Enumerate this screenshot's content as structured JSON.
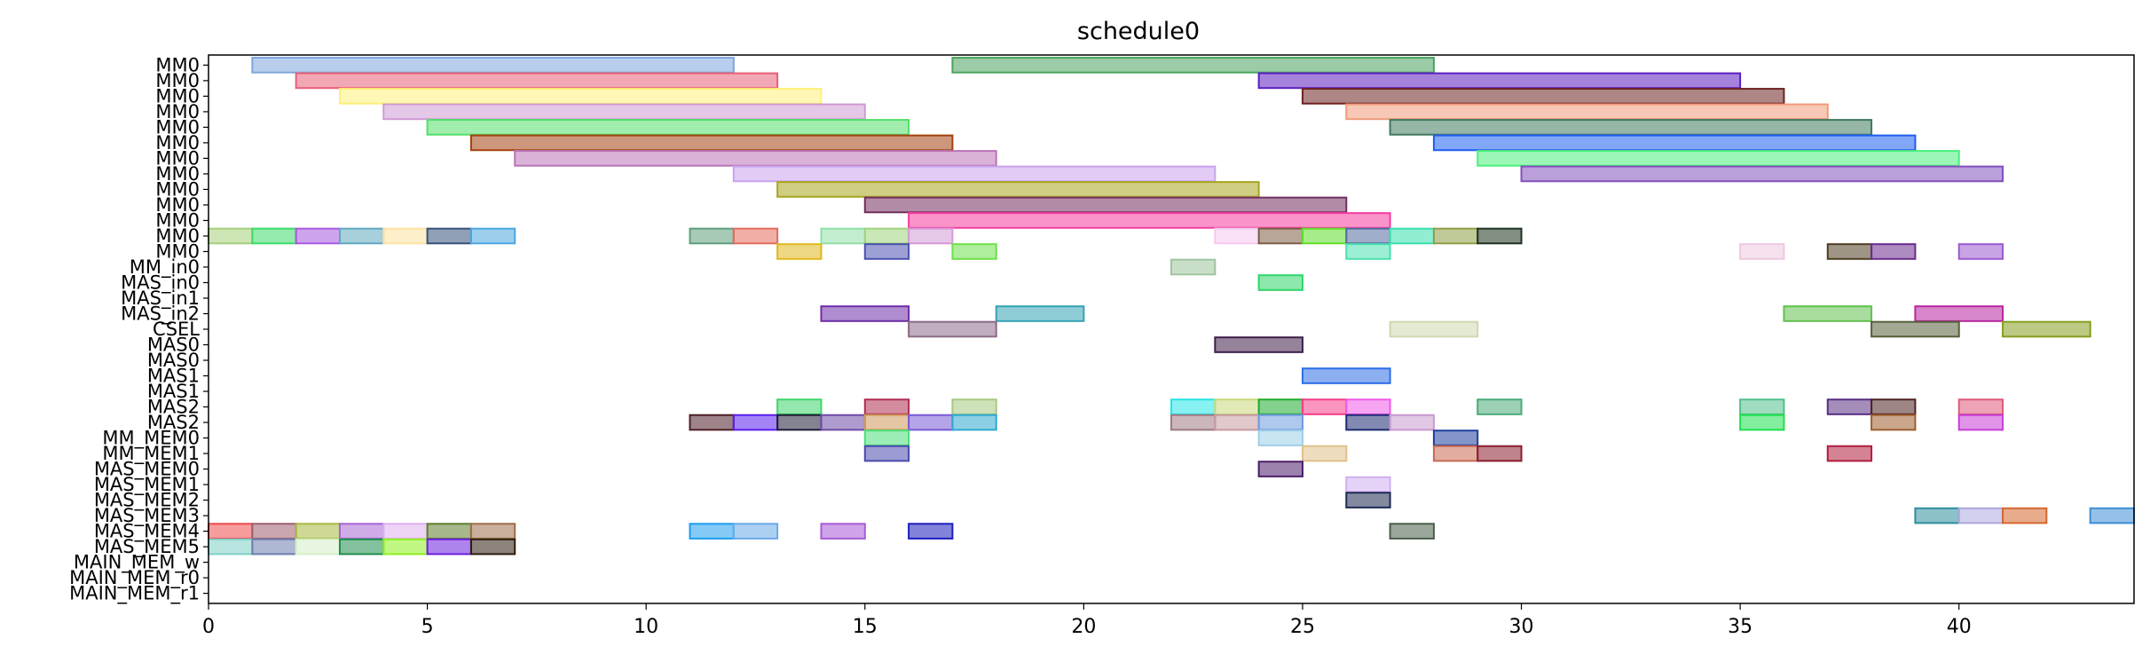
{
  "chart_data": {
    "type": "gantt",
    "title": "schedule0",
    "xlim": [
      0,
      44
    ],
    "xticks": [
      0,
      5,
      10,
      15,
      20,
      25,
      30,
      35,
      40
    ],
    "rows": [
      "MM0",
      "MM0",
      "MM0",
      "MM0",
      "MM0",
      "MM0",
      "MM0",
      "MM0",
      "MM0",
      "MM0",
      "MM0",
      "MM0",
      "MM0",
      "MM_in0",
      "MAS_in0",
      "MAS_in1",
      "MAS_in2",
      "CSEL",
      "MAS0",
      "MAS0",
      "MAS1",
      "MAS1",
      "MAS2",
      "MAS2",
      "MM_MEM0",
      "MM_MEM1",
      "MAS_MEM0",
      "MAS_MEM1",
      "MAS_MEM2",
      "MAS_MEM3",
      "MAS_MEM4",
      "MAS_MEM5",
      "MAIN_MEM_w",
      "MAIN_MEM_r0",
      "MAIN_MEM_r1"
    ],
    "tasks": [
      {
        "row": 0,
        "start": 1,
        "end": 12,
        "color": "#7fa6dc"
      },
      {
        "row": 0,
        "start": 17,
        "end": 28,
        "color": "#4aa35e"
      },
      {
        "row": 1,
        "start": 2,
        "end": 13,
        "color": "#e85f78"
      },
      {
        "row": 1,
        "start": 24,
        "end": 35,
        "color": "#5b1ec0"
      },
      {
        "row": 2,
        "start": 3,
        "end": 14,
        "color": "#fdf07a"
      },
      {
        "row": 2,
        "start": 25,
        "end": 36,
        "color": "#6e2222"
      },
      {
        "row": 3,
        "start": 4,
        "end": 15,
        "color": "#cf9ad3"
      },
      {
        "row": 3,
        "start": 26,
        "end": 37,
        "color": "#f09a78"
      },
      {
        "row": 4,
        "start": 5,
        "end": 16,
        "color": "#52df6a"
      },
      {
        "row": 4,
        "start": 27,
        "end": 38,
        "color": "#3f7a5e"
      },
      {
        "row": 5,
        "start": 6,
        "end": 17,
        "color": "#a4410e"
      },
      {
        "row": 5,
        "start": 28,
        "end": 39,
        "color": "#1e5ef0"
      },
      {
        "row": 6,
        "start": 7,
        "end": 18,
        "color": "#bc73b8"
      },
      {
        "row": 6,
        "start": 29,
        "end": 40,
        "color": "#4af07a"
      },
      {
        "row": 7,
        "start": 12,
        "end": 23,
        "color": "#caa3ee"
      },
      {
        "row": 7,
        "start": 30,
        "end": 41,
        "color": "#8250bd"
      },
      {
        "row": 8,
        "start": 13,
        "end": 24,
        "color": "#a8a51e"
      },
      {
        "row": 9,
        "start": 15,
        "end": 26,
        "color": "#732d5e"
      },
      {
        "row": 10,
        "start": 16,
        "end": 27,
        "color": "#f53d9f"
      },
      {
        "row": 11,
        "start": 0,
        "end": 1,
        "color": "#a6cf7a"
      },
      {
        "row": 11,
        "start": 1,
        "end": 2,
        "color": "#3edb6a"
      },
      {
        "row": 11,
        "start": 2,
        "end": 3,
        "color": "#a85ae0"
      },
      {
        "row": 11,
        "start": 3,
        "end": 4,
        "color": "#5fa8bf"
      },
      {
        "row": 11,
        "start": 4,
        "end": 5,
        "color": "#fde2a0"
      },
      {
        "row": 11,
        "start": 5,
        "end": 6,
        "color": "#36527a"
      },
      {
        "row": 11,
        "start": 6,
        "end": 7,
        "color": "#4aa8e0"
      },
      {
        "row": 11,
        "start": 11,
        "end": 12,
        "color": "#5e9f7c"
      },
      {
        "row": 11,
        "start": 12,
        "end": 13,
        "color": "#e36b5e"
      },
      {
        "row": 11,
        "start": 14,
        "end": 15,
        "color": "#8fe0a8"
      },
      {
        "row": 11,
        "start": 15,
        "end": 16,
        "color": "#9fd37e"
      },
      {
        "row": 11,
        "start": 16,
        "end": 17,
        "color": "#d59ad6"
      },
      {
        "row": 11,
        "start": 23,
        "end": 24,
        "color": "#f7c8f0"
      },
      {
        "row": 11,
        "start": 24,
        "end": 25,
        "color": "#7e5e44"
      },
      {
        "row": 11,
        "start": 25,
        "end": 26,
        "color": "#5fdc2a"
      },
      {
        "row": 11,
        "start": 26,
        "end": 27,
        "color": "#546ba0"
      },
      {
        "row": 11,
        "start": 27,
        "end": 28,
        "color": "#38e0ae"
      },
      {
        "row": 11,
        "start": 28,
        "end": 29,
        "color": "#8d9e46"
      },
      {
        "row": 11,
        "start": 29,
        "end": 30,
        "color": "#1e321e"
      },
      {
        "row": 12,
        "start": 13,
        "end": 14,
        "color": "#e0b81e"
      },
      {
        "row": 12,
        "start": 15,
        "end": 16,
        "color": "#4a52b0"
      },
      {
        "row": 12,
        "start": 17,
        "end": 18,
        "color": "#6ee04a"
      },
      {
        "row": 12,
        "start": 26,
        "end": 27,
        "color": "#4ae0b0"
      },
      {
        "row": 12,
        "start": 35,
        "end": 36,
        "color": "#eec8e0"
      },
      {
        "row": 12,
        "start": 37,
        "end": 38,
        "color": "#4e3e22"
      },
      {
        "row": 12,
        "start": 38,
        "end": 39,
        "color": "#6a2c8c"
      },
      {
        "row": 12,
        "start": 40,
        "end": 41,
        "color": "#9a5ad0"
      },
      {
        "row": 13,
        "start": 22,
        "end": 23,
        "color": "#9fc49e"
      },
      {
        "row": 14,
        "start": 24,
        "end": 25,
        "color": "#2ed668"
      },
      {
        "row": 16,
        "start": 14,
        "end": 16,
        "color": "#6e2ea8"
      },
      {
        "row": 16,
        "start": 18,
        "end": 20,
        "color": "#35a3b5"
      },
      {
        "row": 16,
        "start": 36,
        "end": 38,
        "color": "#62c14e"
      },
      {
        "row": 16,
        "start": 39,
        "end": 41,
        "color": "#b8269e"
      },
      {
        "row": 17,
        "start": 16,
        "end": 18,
        "color": "#8d6a88"
      },
      {
        "row": 17,
        "start": 27,
        "end": 29,
        "color": "#d0d8b0"
      },
      {
        "row": 17,
        "start": 38,
        "end": 40,
        "color": "#55603a"
      },
      {
        "row": 17,
        "start": 41,
        "end": 43,
        "color": "#859e1e"
      },
      {
        "row": 18,
        "start": 23,
        "end": 25,
        "color": "#3e1e4a"
      },
      {
        "row": 20,
        "start": 25,
        "end": 27,
        "color": "#2e6ee8"
      },
      {
        "row": 22,
        "start": 13,
        "end": 14,
        "color": "#3ed66a"
      },
      {
        "row": 22,
        "start": 15,
        "end": 16,
        "color": "#b02e52"
      },
      {
        "row": 22,
        "start": 17,
        "end": 18,
        "color": "#a8c880"
      },
      {
        "row": 22,
        "start": 22,
        "end": 23,
        "color": "#26e5e5"
      },
      {
        "row": 22,
        "start": 23,
        "end": 24,
        "color": "#c8d87a"
      },
      {
        "row": 22,
        "start": 24,
        "end": 25,
        "color": "#1eab2e"
      },
      {
        "row": 22,
        "start": 25,
        "end": 26,
        "color": "#f53e8a"
      },
      {
        "row": 22,
        "start": 26,
        "end": 27,
        "color": "#f05ae8"
      },
      {
        "row": 22,
        "start": 29,
        "end": 30,
        "color": "#4aab7a"
      },
      {
        "row": 22,
        "start": 35,
        "end": 36,
        "color": "#52c08a"
      },
      {
        "row": 22,
        "start": 37,
        "end": 38,
        "color": "#5a2e84"
      },
      {
        "row": 22,
        "start": 38,
        "end": 39,
        "color": "#4e2222"
      },
      {
        "row": 22,
        "start": 40,
        "end": 41,
        "color": "#e05a7a"
      },
      {
        "row": 23,
        "start": 11,
        "end": 12,
        "color": "#4e1e26"
      },
      {
        "row": 23,
        "start": 12,
        "end": 13,
        "color": "#5a1ef0"
      },
      {
        "row": 23,
        "start": 13,
        "end": 14,
        "color": "#1e1e36"
      },
      {
        "row": 23,
        "start": 14,
        "end": 15,
        "color": "#6e4aa8"
      },
      {
        "row": 23,
        "start": 15,
        "end": 16,
        "color": "#d0985a"
      },
      {
        "row": 23,
        "start": 16,
        "end": 17,
        "color": "#7a5ad6"
      },
      {
        "row": 23,
        "start": 17,
        "end": 18,
        "color": "#2ea8d0"
      },
      {
        "row": 23,
        "start": 22,
        "end": 23,
        "color": "#9e7a84"
      },
      {
        "row": 23,
        "start": 23,
        "end": 24,
        "color": "#c89aa0"
      },
      {
        "row": 23,
        "start": 24,
        "end": 25,
        "color": "#6e9ae0"
      },
      {
        "row": 23,
        "start": 26,
        "end": 27,
        "color": "#1e2a72"
      },
      {
        "row": 23,
        "start": 27,
        "end": 28,
        "color": "#c89ad0"
      },
      {
        "row": 23,
        "start": 35,
        "end": 36,
        "color": "#1ee04e"
      },
      {
        "row": 23,
        "start": 38,
        "end": 39,
        "color": "#9e5e2e"
      },
      {
        "row": 23,
        "start": 40,
        "end": 41,
        "color": "#c83ed6"
      },
      {
        "row": 24,
        "start": 15,
        "end": 16,
        "color": "#4ae07a"
      },
      {
        "row": 24,
        "start": 24,
        "end": 25,
        "color": "#9ed0e8"
      },
      {
        "row": 24,
        "start": 28,
        "end": 29,
        "color": "#1e3e9e"
      },
      {
        "row": 25,
        "start": 15,
        "end": 16,
        "color": "#4a4aae"
      },
      {
        "row": 25,
        "start": 25,
        "end": 26,
        "color": "#e0c08a"
      },
      {
        "row": 25,
        "start": 28,
        "end": 29,
        "color": "#c86a52"
      },
      {
        "row": 25,
        "start": 29,
        "end": 30,
        "color": "#8a1e2e"
      },
      {
        "row": 25,
        "start": 37,
        "end": 38,
        "color": "#b01e3e"
      },
      {
        "row": 26,
        "start": 24,
        "end": 25,
        "color": "#4a1e6a"
      },
      {
        "row": 27,
        "start": 26,
        "end": 27,
        "color": "#d0aef0"
      },
      {
        "row": 28,
        "start": 26,
        "end": 27,
        "color": "#1e2a52"
      },
      {
        "row": 29,
        "start": 39,
        "end": 40,
        "color": "#2e8e9e"
      },
      {
        "row": 29,
        "start": 40,
        "end": 41,
        "color": "#aea8e0"
      },
      {
        "row": 29,
        "start": 41,
        "end": 42,
        "color": "#d6662e"
      },
      {
        "row": 29,
        "start": 43,
        "end": 44,
        "color": "#3e8ed6"
      },
      {
        "row": 30,
        "start": 0,
        "end": 1,
        "color": "#ee4a4a"
      },
      {
        "row": 30,
        "start": 1,
        "end": 2,
        "color": "#9e5e6e"
      },
      {
        "row": 30,
        "start": 2,
        "end": 3,
        "color": "#a8b83e"
      },
      {
        "row": 30,
        "start": 3,
        "end": 4,
        "color": "#a866d6"
      },
      {
        "row": 30,
        "start": 4,
        "end": 5,
        "color": "#e0b0f0"
      },
      {
        "row": 30,
        "start": 5,
        "end": 6,
        "color": "#5e7e2e"
      },
      {
        "row": 30,
        "start": 6,
        "end": 7,
        "color": "#9e6e4a"
      },
      {
        "row": 30,
        "start": 11,
        "end": 12,
        "color": "#1e9ef0"
      },
      {
        "row": 30,
        "start": 12,
        "end": 13,
        "color": "#6aaae8"
      },
      {
        "row": 30,
        "start": 14,
        "end": 15,
        "color": "#a85ad6"
      },
      {
        "row": 30,
        "start": 16,
        "end": 17,
        "color": "#1e1ebe"
      },
      {
        "row": 30,
        "start": 27,
        "end": 28,
        "color": "#4a5e4a"
      },
      {
        "row": 31,
        "start": 0,
        "end": 1,
        "color": "#7ed0c4"
      },
      {
        "row": 31,
        "start": 1,
        "end": 2,
        "color": "#6e7eae"
      },
      {
        "row": 31,
        "start": 2,
        "end": 3,
        "color": "#d6f0c8"
      },
      {
        "row": 31,
        "start": 3,
        "end": 4,
        "color": "#1e8e4e"
      },
      {
        "row": 31,
        "start": 4,
        "end": 5,
        "color": "#8ef01e"
      },
      {
        "row": 31,
        "start": 5,
        "end": 6,
        "color": "#6e1ee0"
      },
      {
        "row": 31,
        "start": 6,
        "end": 7,
        "color": "#2e1e0e"
      }
    ]
  }
}
